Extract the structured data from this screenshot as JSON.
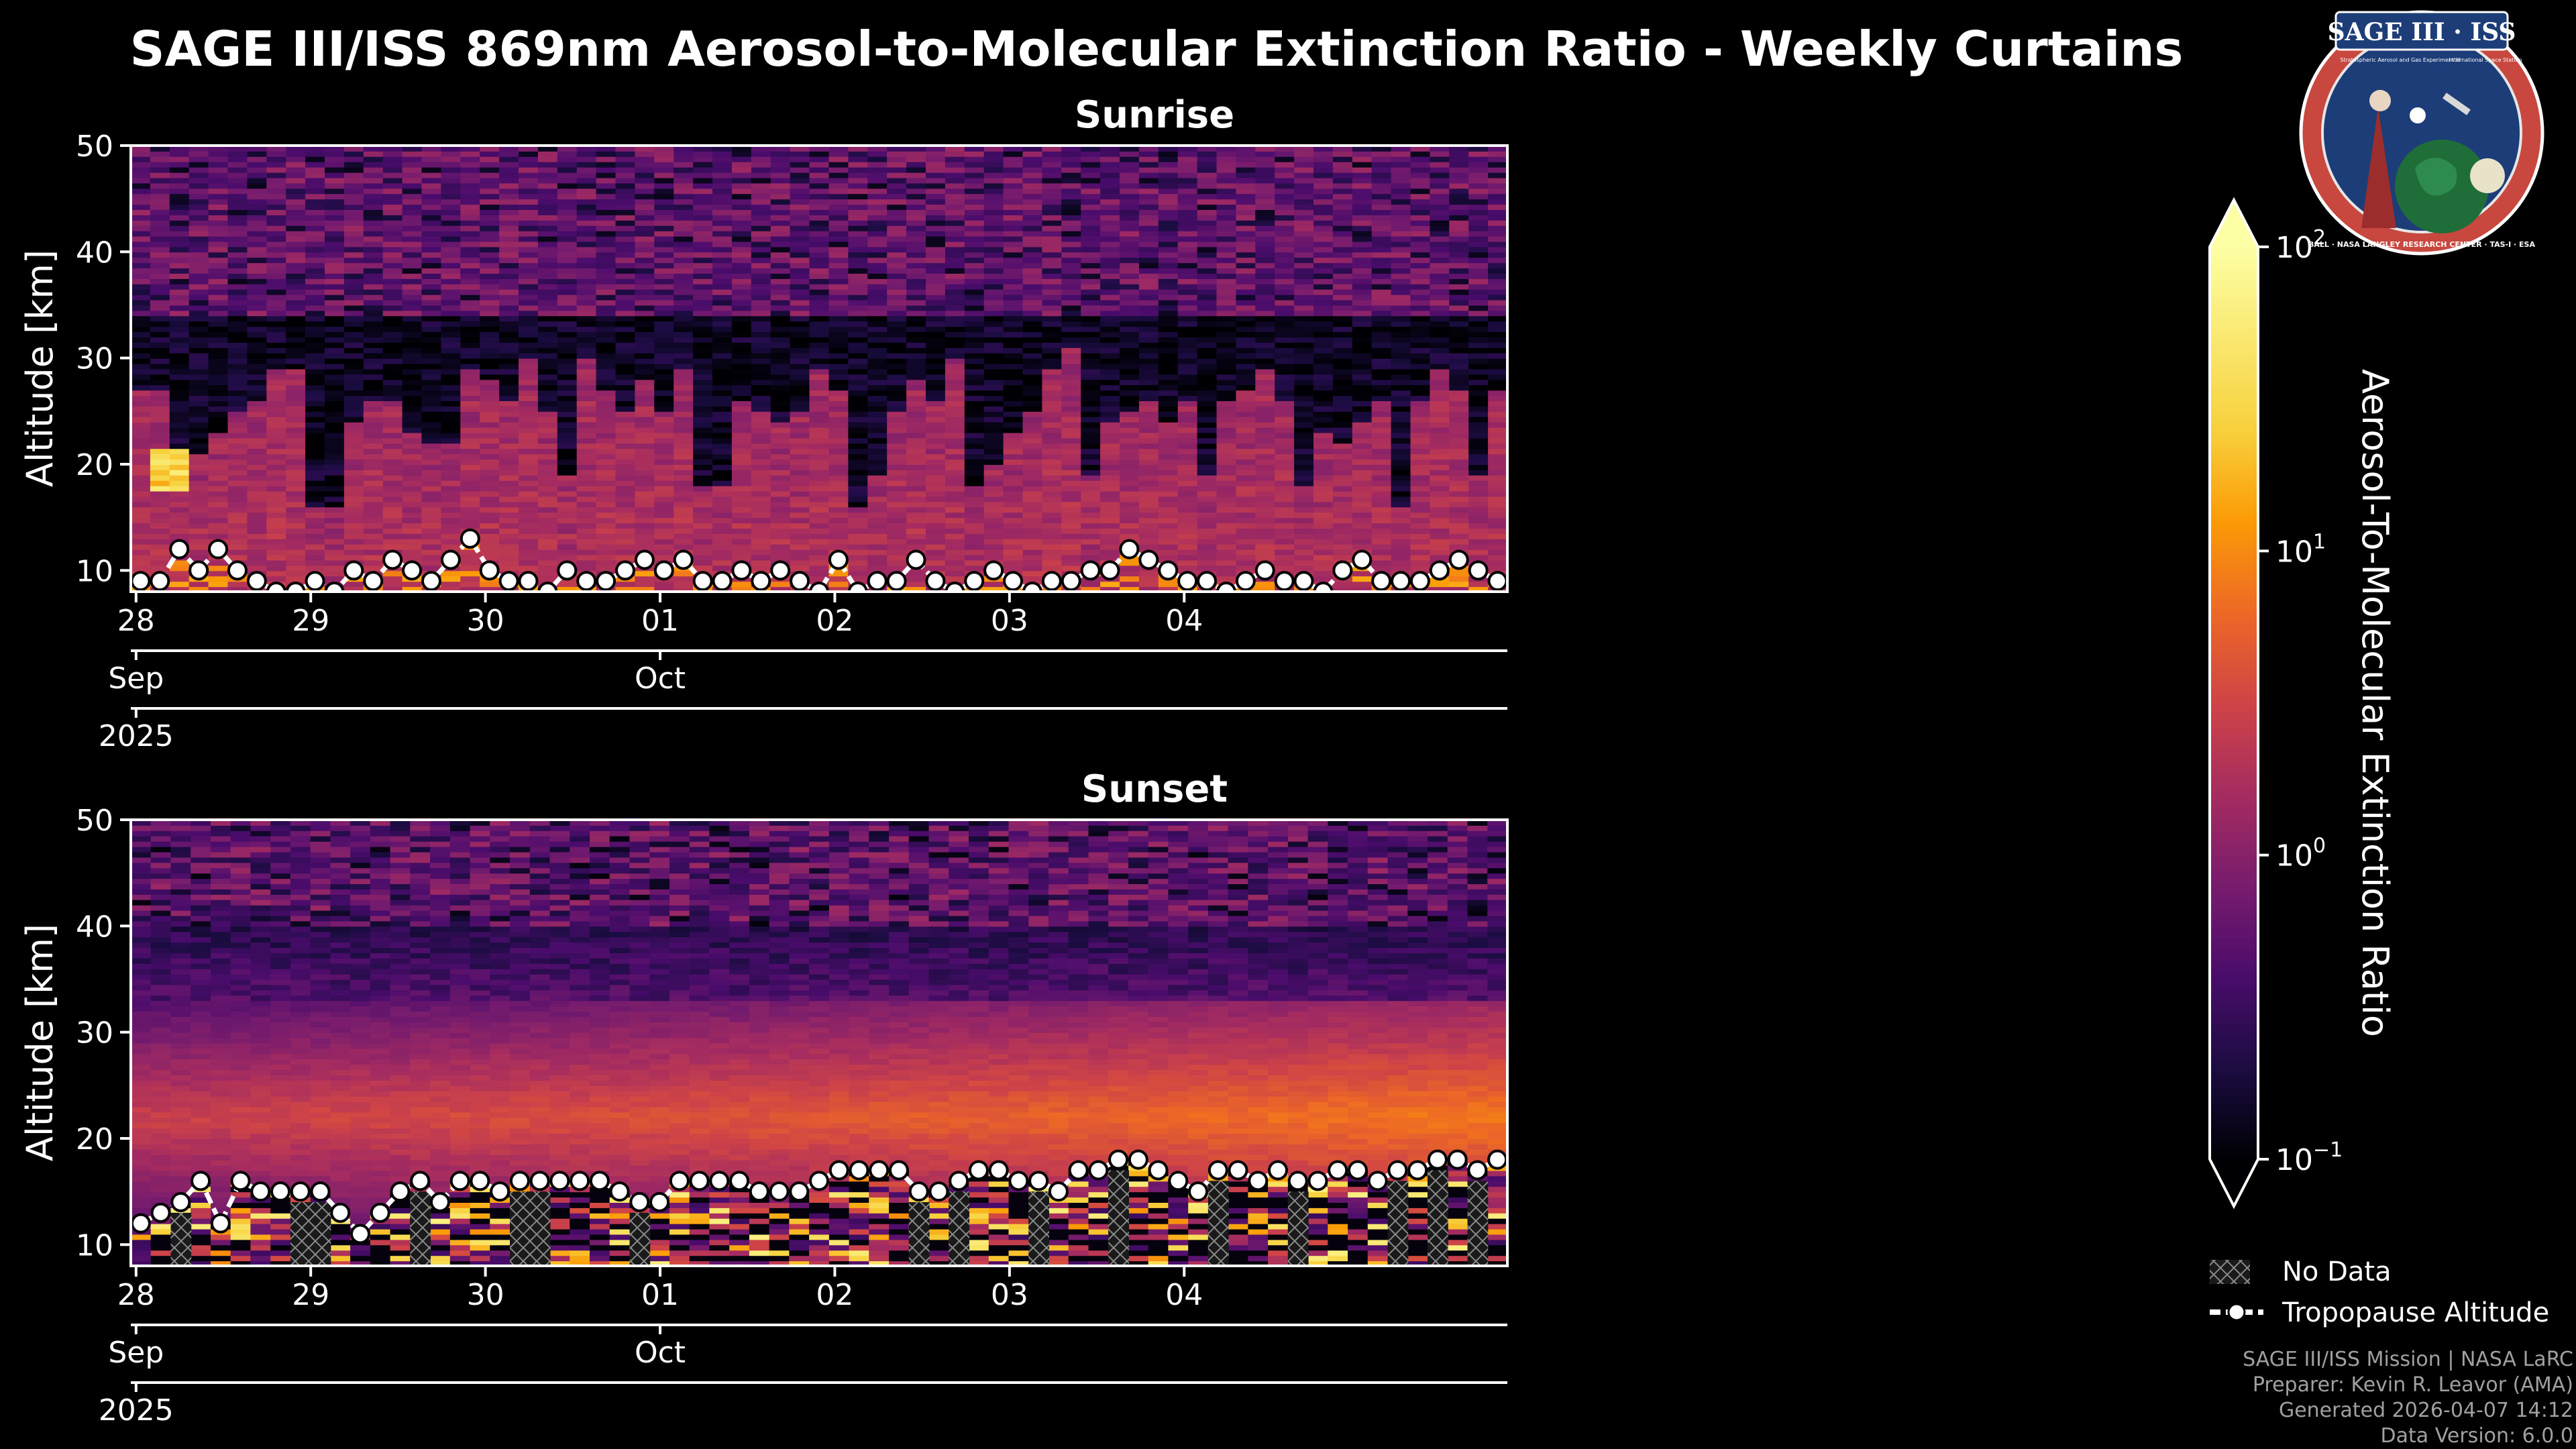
{
  "figure": {
    "title": "SAGE III/ISS 869nm Aerosol-to-Molecular Extinction Ratio - Weekly Curtains",
    "credits": [
      "SAGE III/ISS Mission | NASA LaRC",
      "Preparer: Kevin R. Leavor (AMA)",
      "Generated 2026-04-07 14:12",
      "Data Version: 6.0.0"
    ],
    "logo": {
      "title": "SAGE III · ISS",
      "subtitle_left": "Stratospheric Aerosol and Gas Experiment III",
      "subtitle_right": "International Space Station",
      "ring_text": "BALL · NASA LANGLEY RESEARCH CENTER · TAS-I · ESA"
    },
    "colors": {
      "background": "#000000",
      "text": "#ffffff",
      "logo_ring": "#c8473e",
      "logo_inner": "#1d3d78"
    }
  },
  "chart_data": [
    {
      "type": "heatmap",
      "title": "Sunrise",
      "ylabel": "Altitude [km]",
      "ylim": [
        8,
        50
      ],
      "yticks": [
        10,
        20,
        30,
        40,
        50
      ],
      "x_day_range": [
        27.97,
        35.85
      ],
      "x_ticks": [
        {
          "day": 28,
          "label": "28"
        },
        {
          "day": 29,
          "label": "29"
        },
        {
          "day": 30,
          "label": "30"
        },
        {
          "day": 31,
          "label": "01"
        },
        {
          "day": 32,
          "label": "02"
        },
        {
          "day": 33,
          "label": "03"
        },
        {
          "day": 34,
          "label": "04"
        }
      ],
      "month_ticks": [
        {
          "day": 28,
          "label": "Sep"
        },
        {
          "day": 31,
          "label": "Oct"
        }
      ],
      "year_ticks": [
        {
          "day": 28,
          "label": "2025"
        }
      ],
      "n_profiles": 71,
      "aerosol_top_km": [
        27,
        27,
        21,
        21,
        23,
        25,
        26,
        29,
        29,
        16,
        16,
        24,
        26,
        26,
        23,
        22,
        22,
        29,
        28,
        26,
        30,
        25,
        19,
        30,
        27,
        25,
        28,
        25,
        29,
        18,
        18,
        26,
        25,
        24,
        25,
        29,
        27,
        16,
        19,
        25,
        28,
        26,
        30,
        18,
        20,
        23,
        25,
        29,
        31,
        19,
        24,
        25,
        26,
        24,
        26,
        19,
        26,
        27,
        29,
        26,
        18,
        23,
        22,
        24,
        26,
        16,
        26,
        29,
        27,
        19,
        27
      ],
      "tropopause_km": [
        9,
        9,
        12,
        10,
        12,
        10,
        9,
        8,
        8,
        9,
        8,
        10,
        9,
        11,
        10,
        9,
        11,
        13,
        10,
        9,
        9,
        8,
        10,
        9,
        9,
        10,
        11,
        10,
        11,
        9,
        9,
        10,
        9,
        10,
        9,
        8,
        11,
        8,
        9,
        9,
        11,
        9,
        8,
        9,
        10,
        9,
        8,
        9,
        9,
        10,
        10,
        12,
        11,
        10,
        9,
        9,
        8,
        9,
        10,
        9,
        9,
        8,
        10,
        11,
        9,
        9,
        9,
        10,
        11,
        10,
        9
      ],
      "enhanced_layer": {
        "day": 28.22,
        "alt_km_range": [
          17.5,
          21.5
        ],
        "peak_ratio": 60
      }
    },
    {
      "type": "heatmap",
      "title": "Sunset",
      "ylabel": "Altitude [km]",
      "ylim": [
        8,
        50
      ],
      "yticks": [
        10,
        20,
        30,
        40,
        50
      ],
      "x_day_range": [
        27.97,
        35.85
      ],
      "x_ticks": [
        {
          "day": 28,
          "label": "28"
        },
        {
          "day": 29,
          "label": "29"
        },
        {
          "day": 30,
          "label": "30"
        },
        {
          "day": 31,
          "label": "01"
        },
        {
          "day": 32,
          "label": "02"
        },
        {
          "day": 33,
          "label": "03"
        },
        {
          "day": 34,
          "label": "04"
        }
      ],
      "month_ticks": [
        {
          "day": 28,
          "label": "Sep"
        },
        {
          "day": 31,
          "label": "Oct"
        }
      ],
      "year_ticks": [
        {
          "day": 28,
          "label": "2025"
        }
      ],
      "n_profiles": 69,
      "aerosol_layer_km": [
        16,
        33
      ],
      "aerosol_layer_peak_ratio": [
        3,
        10
      ],
      "tropopause_km": [
        12,
        13,
        14,
        16,
        12,
        16,
        15,
        15,
        15,
        15,
        13,
        11,
        13,
        15,
        16,
        14,
        16,
        16,
        15,
        16,
        16,
        16,
        16,
        16,
        15,
        14,
        14,
        16,
        16,
        16,
        16,
        15,
        15,
        15,
        16,
        17,
        17,
        17,
        17,
        15,
        15,
        16,
        17,
        17,
        16,
        16,
        15,
        17,
        17,
        18,
        18,
        17,
        16,
        15,
        17,
        17,
        16,
        17,
        16,
        16,
        17,
        17,
        16,
        17,
        17,
        18,
        18,
        17,
        18
      ]
    }
  ],
  "colorbar": {
    "label": "Aerosol-To-Molecular Extinction Ratio",
    "scale": "log",
    "range": [
      0.1,
      100
    ],
    "ticks": [
      {
        "value": 100,
        "base": "10",
        "exp": "2"
      },
      {
        "value": 10,
        "base": "10",
        "exp": "1"
      },
      {
        "value": 1,
        "base": "10",
        "exp": "0"
      },
      {
        "value": 0.1,
        "base": "10",
        "exp": "−1"
      }
    ],
    "colormap": "inferno",
    "extend": "both"
  },
  "legend": {
    "items": [
      {
        "label": "No Data",
        "kind": "hatch"
      },
      {
        "label": "Tropopause Altitude",
        "kind": "line-marker"
      }
    ]
  }
}
